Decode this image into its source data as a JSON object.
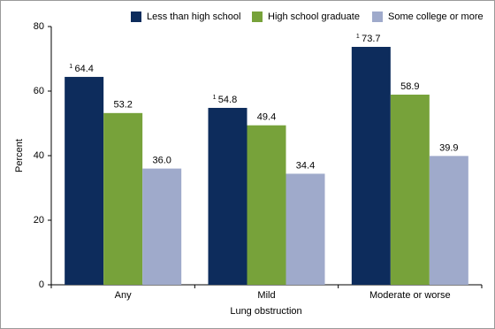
{
  "chart_data": {
    "type": "bar",
    "x_label": "Lung obstruction",
    "y_label": "Percent",
    "categories": [
      "Any",
      "Mild",
      "Moderate or worse"
    ],
    "series": [
      {
        "name": "Less than high school",
        "color": "#0d2c5c",
        "values": [
          64.4,
          54.8,
          73.7
        ],
        "value_labels": [
          "64.4",
          "54.8",
          "73.7"
        ],
        "value_notes": [
          "1",
          "1",
          "1"
        ]
      },
      {
        "name": "High school graduate",
        "color": "#77a23a",
        "values": [
          53.2,
          49.4,
          58.9
        ],
        "value_labels": [
          "53.2",
          "49.4",
          "58.9"
        ]
      },
      {
        "name": "Some college or more",
        "color": "#9faacb",
        "values": [
          36.0,
          34.4,
          39.9
        ],
        "value_labels": [
          "36.0",
          "34.4",
          "39.9"
        ]
      }
    ],
    "ylim": [
      0,
      80
    ],
    "yticks": [
      0,
      20,
      40,
      60,
      80
    ],
    "grid": false,
    "legend": "top-right"
  }
}
